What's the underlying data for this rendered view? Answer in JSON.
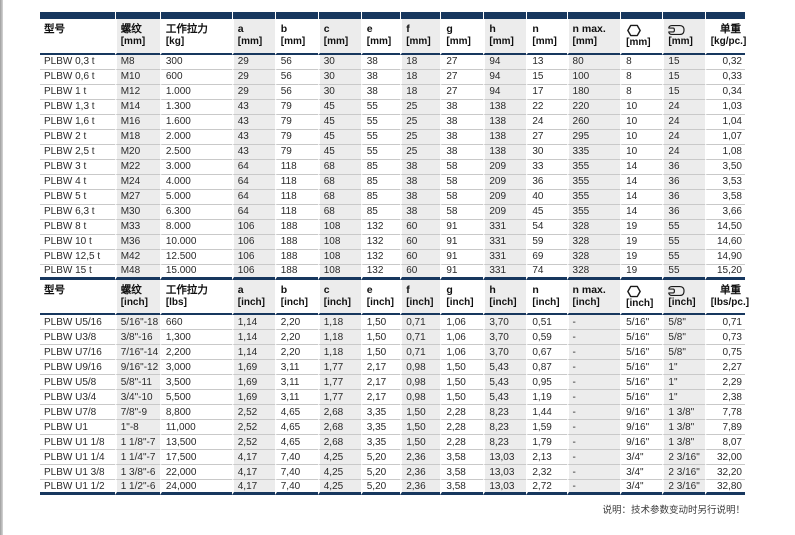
{
  "footer_note": "说明：技术参数变动时另行说明！",
  "colors": {
    "navy": "#17375e",
    "column_shade": "#ececec",
    "row_line": "#c9c9c9"
  },
  "icons": {
    "hex": "hex-socket-icon",
    "wrench": "wrench-icon"
  },
  "tables": [
    {
      "name": "metric",
      "topbar": true,
      "columns": [
        {
          "key": "model",
          "label": "型号",
          "unit": "",
          "shade": false
        },
        {
          "key": "thread",
          "label": "螺纹",
          "unit": "[mm]",
          "shade": true
        },
        {
          "key": "wll",
          "label": "工作拉力",
          "unit": "[kg]",
          "shade": false
        },
        {
          "key": "a",
          "label": "a",
          "unit": "[mm]",
          "shade": true
        },
        {
          "key": "b",
          "label": "b",
          "unit": "[mm]",
          "shade": false
        },
        {
          "key": "c",
          "label": "c",
          "unit": "[mm]",
          "shade": true
        },
        {
          "key": "e",
          "label": "e",
          "unit": "[mm]",
          "shade": false
        },
        {
          "key": "f",
          "label": "f",
          "unit": "[mm]",
          "shade": true
        },
        {
          "key": "g",
          "label": "g",
          "unit": "[mm]",
          "shade": false
        },
        {
          "key": "h",
          "label": "h",
          "unit": "[mm]",
          "shade": true
        },
        {
          "key": "n",
          "label": "n",
          "unit": "[mm]",
          "shade": false
        },
        {
          "key": "n_max",
          "label": "n max.",
          "unit": "[mm]",
          "shade": true
        },
        {
          "key": "hex",
          "icon": "hex",
          "unit": "[mm]",
          "shade": false
        },
        {
          "key": "wrench",
          "icon": "wrench",
          "unit": "[mm]",
          "shade": true
        },
        {
          "key": "weight",
          "label": "单重",
          "unit": "[kg/pc.]",
          "shade": false,
          "align": "right"
        }
      ],
      "rows": [
        [
          "PLBW 0,3 t",
          "M8",
          "300",
          "29",
          "56",
          "30",
          "38",
          "18",
          "27",
          "94",
          "13",
          "80",
          "8",
          "15",
          "0,32"
        ],
        [
          "PLBW 0,6 t",
          "M10",
          "600",
          "29",
          "56",
          "30",
          "38",
          "18",
          "27",
          "94",
          "15",
          "100",
          "8",
          "15",
          "0,33"
        ],
        [
          "PLBW 1 t",
          "M12",
          "1.000",
          "29",
          "56",
          "30",
          "38",
          "18",
          "27",
          "94",
          "17",
          "180",
          "8",
          "15",
          "0,34"
        ],
        [
          "PLBW 1,3 t",
          "M14",
          "1.300",
          "43",
          "79",
          "45",
          "55",
          "25",
          "38",
          "138",
          "22",
          "220",
          "10",
          "24",
          "1,03"
        ],
        [
          "PLBW 1,6 t",
          "M16",
          "1.600",
          "43",
          "79",
          "45",
          "55",
          "25",
          "38",
          "138",
          "24",
          "260",
          "10",
          "24",
          "1,04"
        ],
        [
          "PLBW 2 t",
          "M18",
          "2.000",
          "43",
          "79",
          "45",
          "55",
          "25",
          "38",
          "138",
          "27",
          "295",
          "10",
          "24",
          "1,07"
        ],
        [
          "PLBW 2,5 t",
          "M20",
          "2.500",
          "43",
          "79",
          "45",
          "55",
          "25",
          "38",
          "138",
          "30",
          "335",
          "10",
          "24",
          "1,08"
        ],
        [
          "PLBW 3 t",
          "M22",
          "3.000",
          "64",
          "118",
          "68",
          "85",
          "38",
          "58",
          "209",
          "33",
          "355",
          "14",
          "36",
          "3,50"
        ],
        [
          "PLBW 4 t",
          "M24",
          "4.000",
          "64",
          "118",
          "68",
          "85",
          "38",
          "58",
          "209",
          "36",
          "355",
          "14",
          "36",
          "3,53"
        ],
        [
          "PLBW 5 t",
          "M27",
          "5.000",
          "64",
          "118",
          "68",
          "85",
          "38",
          "58",
          "209",
          "40",
          "355",
          "14",
          "36",
          "3,58"
        ],
        [
          "PLBW 6,3 t",
          "M30",
          "6.300",
          "64",
          "118",
          "68",
          "85",
          "38",
          "58",
          "209",
          "45",
          "355",
          "14",
          "36",
          "3,66"
        ],
        [
          "PLBW 8 t",
          "M33",
          "8.000",
          "106",
          "188",
          "108",
          "132",
          "60",
          "91",
          "331",
          "54",
          "328",
          "19",
          "55",
          "14,50"
        ],
        [
          "PLBW 10 t",
          "M36",
          "10.000",
          "106",
          "188",
          "108",
          "132",
          "60",
          "91",
          "331",
          "59",
          "328",
          "19",
          "55",
          "14,60"
        ],
        [
          "PLBW 12,5 t",
          "M42",
          "12.500",
          "106",
          "188",
          "108",
          "132",
          "60",
          "91",
          "331",
          "69",
          "328",
          "19",
          "55",
          "14,90"
        ],
        [
          "PLBW 15 t",
          "M48",
          "15.000",
          "106",
          "188",
          "108",
          "132",
          "60",
          "91",
          "331",
          "74",
          "328",
          "19",
          "55",
          "15,20"
        ]
      ]
    },
    {
      "name": "imperial",
      "topbar": false,
      "columns": [
        {
          "key": "model",
          "label": "型号",
          "unit": "",
          "shade": false
        },
        {
          "key": "thread",
          "label": "螺纹",
          "unit": "[inch]",
          "shade": true
        },
        {
          "key": "wll",
          "label": "工作拉力",
          "unit": "[lbs]",
          "shade": false
        },
        {
          "key": "a",
          "label": "a",
          "unit": "[inch]",
          "shade": true
        },
        {
          "key": "b",
          "label": "b",
          "unit": "[inch]",
          "shade": false
        },
        {
          "key": "c",
          "label": "c",
          "unit": "[inch]",
          "shade": true
        },
        {
          "key": "e",
          "label": "e",
          "unit": "[inch]",
          "shade": false
        },
        {
          "key": "f",
          "label": "f",
          "unit": "[inch]",
          "shade": true
        },
        {
          "key": "g",
          "label": "g",
          "unit": "[inch]",
          "shade": false
        },
        {
          "key": "h",
          "label": "h",
          "unit": "[inch]",
          "shade": true
        },
        {
          "key": "n",
          "label": "n",
          "unit": "[inch]",
          "shade": false
        },
        {
          "key": "n_max",
          "label": "n max.",
          "unit": "[inch]",
          "shade": true
        },
        {
          "key": "hex",
          "icon": "hex",
          "unit": "[inch]",
          "shade": false
        },
        {
          "key": "wrench",
          "icon": "wrench",
          "unit": "[inch]",
          "shade": true
        },
        {
          "key": "weight",
          "label": "单重",
          "unit": "[lbs/pc.]",
          "shade": false,
          "align": "right"
        }
      ],
      "rows": [
        [
          "PLBW U5/16",
          "5/16\"-18",
          "660",
          "1,14",
          "2,20",
          "1,18",
          "1,50",
          "0,71",
          "1,06",
          "3,70",
          "0,51",
          "-",
          "5/16\"",
          "5/8\"",
          "0,71"
        ],
        [
          "PLBW U3/8",
          "3/8\"-16",
          "1,300",
          "1,14",
          "2,20",
          "1,18",
          "1,50",
          "0,71",
          "1,06",
          "3,70",
          "0,59",
          "-",
          "5/16\"",
          "5/8\"",
          "0,73"
        ],
        [
          "PLBW U7/16",
          "7/16\"-14",
          "2,200",
          "1,14",
          "2,20",
          "1,18",
          "1,50",
          "0,71",
          "1,06",
          "3,70",
          "0,67",
          "-",
          "5/16\"",
          "5/8\"",
          "0,75"
        ],
        [
          "PLBW U9/16",
          "9/16\"-12",
          "3,000",
          "1,69",
          "3,11",
          "1,77",
          "2,17",
          "0,98",
          "1,50",
          "5,43",
          "0,87",
          "-",
          "5/16\"",
          "1\"",
          "2,27"
        ],
        [
          "PLBW U5/8",
          "5/8\"-11",
          "3,500",
          "1,69",
          "3,11",
          "1,77",
          "2,17",
          "0,98",
          "1,50",
          "5,43",
          "0,95",
          "-",
          "5/16\"",
          "1\"",
          "2,29"
        ],
        [
          "PLBW U3/4",
          "3/4\"-10",
          "5,500",
          "1,69",
          "3,11",
          "1,77",
          "2,17",
          "0,98",
          "1,50",
          "5,43",
          "1,19",
          "-",
          "5/16\"",
          "1\"",
          "2,38"
        ],
        [
          "PLBW U7/8",
          "7/8\"-9",
          "8,800",
          "2,52",
          "4,65",
          "2,68",
          "3,35",
          "1,50",
          "2,28",
          "8,23",
          "1,44",
          "-",
          "9/16\"",
          "1 3/8\"",
          "7,78"
        ],
        [
          "PLBW U1",
          "1\"-8",
          "11,000",
          "2,52",
          "4,65",
          "2,68",
          "3,35",
          "1,50",
          "2,28",
          "8,23",
          "1,59",
          "-",
          "9/16\"",
          "1 3/8\"",
          "7,89"
        ],
        [
          "PLBW U1 1/8",
          "1 1/8\"-7",
          "13,500",
          "2,52",
          "4,65",
          "2,68",
          "3,35",
          "1,50",
          "2,28",
          "8,23",
          "1,79",
          "-",
          "9/16\"",
          "1 3/8\"",
          "8,07"
        ],
        [
          "PLBW U1 1/4",
          "1 1/4\"-7",
          "17,500",
          "4,17",
          "7,40",
          "4,25",
          "5,20",
          "2,36",
          "3,58",
          "13,03",
          "2,13",
          "-",
          "3/4\"",
          "2 3/16\"",
          "32,00"
        ],
        [
          "PLBW U1 3/8",
          "1 3/8\"-6",
          "22,000",
          "4,17",
          "7,40",
          "4,25",
          "5,20",
          "2,36",
          "3,58",
          "13,03",
          "2,32",
          "-",
          "3/4\"",
          "2 3/16\"",
          "32,20"
        ],
        [
          "PLBW U1 1/2",
          "1 1/2\"-6",
          "24,000",
          "4,17",
          "7,40",
          "4,25",
          "5,20",
          "2,36",
          "3,58",
          "13,03",
          "2,72",
          "-",
          "3/4\"",
          "2 3/16\"",
          "32,80"
        ]
      ]
    }
  ]
}
